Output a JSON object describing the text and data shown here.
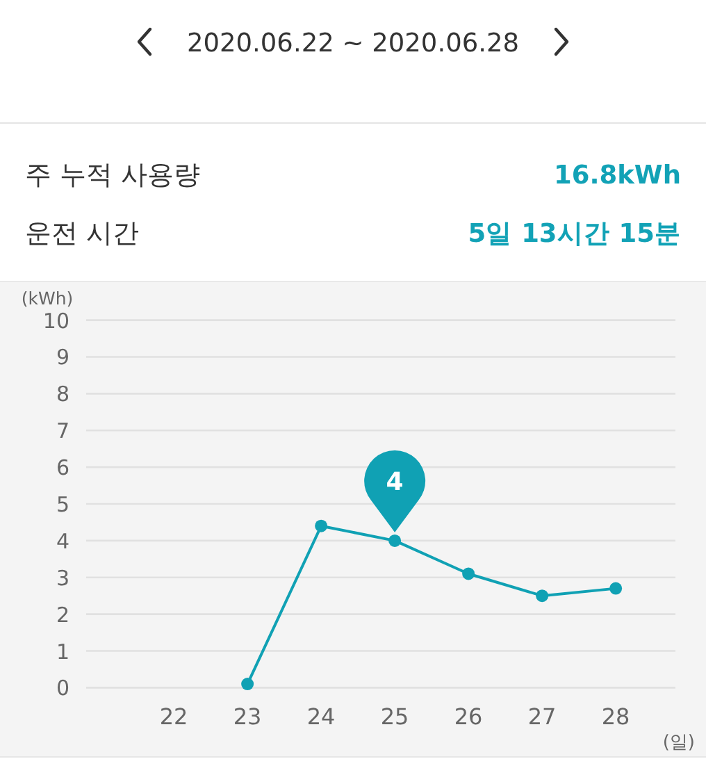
{
  "chart_data": {
    "type": "line",
    "title": "2020.06.22 ~ 2020.06.28",
    "annotations": [
      "주 누적 사용량",
      "16.8kWh",
      "운전 시간",
      "5일 13시간 15분"
    ],
    "ylabel": "(kWh)",
    "xlabel": "(일)",
    "categories": [
      "22",
      "23",
      "24",
      "25",
      "26",
      "27",
      "28"
    ],
    "series": [
      {
        "color": "#10a1b4",
        "values": [
          null,
          0.1,
          4.4,
          4,
          3.1,
          2.5,
          2.7
        ],
        "value_labels": [
          null,
          null,
          null,
          "4",
          null,
          null,
          null
        ]
      }
    ],
    "ylim": [
      0,
      10
    ],
    "yticks": [
      0,
      1,
      2,
      3,
      4,
      5,
      6,
      7,
      8,
      9,
      10
    ],
    "grid": "y",
    "marker": "circle",
    "line_style": "solid"
  }
}
